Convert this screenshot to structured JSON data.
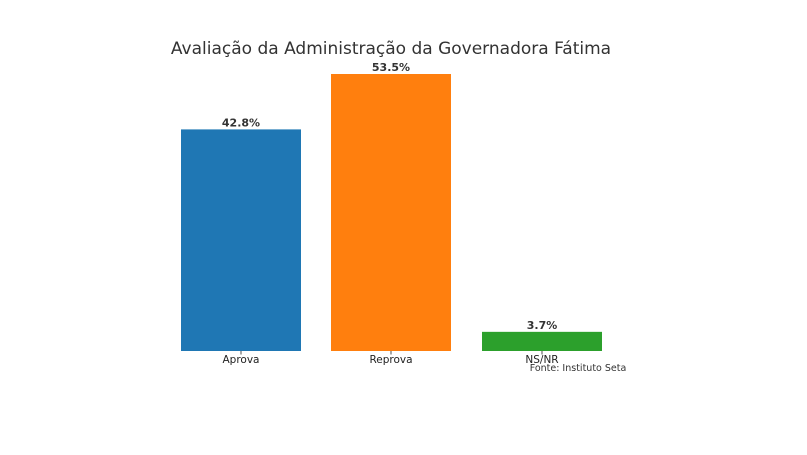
{
  "chart_data": {
    "type": "bar",
    "title": "Avaliação da Administração da Governadora Fátima",
    "categories": [
      "Aprova",
      "Reprova",
      "NS/NR"
    ],
    "values": [
      42.8,
      53.5,
      3.7
    ],
    "value_labels": [
      "42.8%",
      "53.5%",
      "3.7%"
    ],
    "colors": [
      "#1f77b4",
      "#ff7f0e",
      "#2ca02c"
    ],
    "ylim": [
      0,
      53.5
    ],
    "xlabel": "",
    "ylabel": "",
    "grid": false,
    "source": "Fonte: Instituto Seta"
  }
}
